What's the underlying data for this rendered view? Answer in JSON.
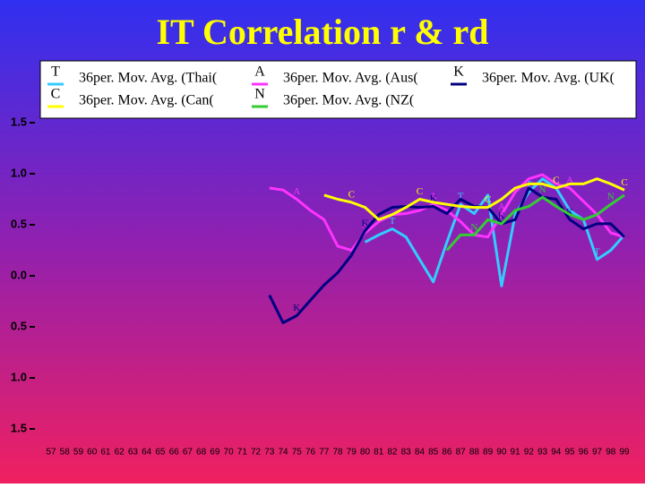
{
  "chart_data": {
    "type": "line",
    "title": "IT Correlation r & rd",
    "categories": [
      "57",
      "58",
      "59",
      "60",
      "61",
      "62",
      "63",
      "64",
      "65",
      "66",
      "67",
      "68",
      "69",
      "70",
      "71",
      "72",
      "73",
      "74",
      "75",
      "76",
      "77",
      "78",
      "79",
      "80",
      "81",
      "82",
      "83",
      "84",
      "85",
      "86",
      "87",
      "88",
      "89",
      "90",
      "91",
      "92",
      "93",
      "94",
      "95",
      "96",
      "97",
      "98",
      "99"
    ],
    "ylim": [
      -1.5,
      1.5
    ],
    "yticks": [
      {
        "value": -1.5,
        "label": "1.5"
      },
      {
        "value": -1,
        "label": "1.0"
      },
      {
        "value": -0.5,
        "label": "0.5"
      },
      {
        "value": 0,
        "label": "0.0"
      },
      {
        "value": 0.5,
        "label": "0.5"
      },
      {
        "value": 1,
        "label": "1.0"
      },
      {
        "value": 1.5,
        "label": "1.5"
      }
    ],
    "series": [
      {
        "name": "36per. Mov. Avg. (Thai(",
        "marker": "T",
        "color": "#33ccff",
        "values": [
          null,
          null,
          null,
          null,
          null,
          null,
          null,
          null,
          null,
          null,
          null,
          null,
          null,
          null,
          null,
          null,
          null,
          null,
          null,
          null,
          null,
          null,
          null,
          0.33,
          0.4,
          0.46,
          0.38,
          0.16,
          -0.06,
          0.33,
          0.7,
          0.61,
          0.79,
          -0.1,
          0.6,
          0.82,
          0.95,
          0.86,
          0.64,
          0.55,
          0.16,
          0.25,
          0.4
        ]
      },
      {
        "name": "36per. Mov. Avg. (Aus(",
        "marker": "A",
        "color": "#ff33ff",
        "values": [
          null,
          null,
          null,
          null,
          null,
          null,
          null,
          null,
          null,
          null,
          null,
          null,
          null,
          null,
          null,
          null,
          0.86,
          0.84,
          0.75,
          0.64,
          0.55,
          0.29,
          0.25,
          0.42,
          0.53,
          0.6,
          0.61,
          0.64,
          0.7,
          0.64,
          0.53,
          0.4,
          0.38,
          0.6,
          0.82,
          0.95,
          0.99,
          0.9,
          0.86,
          0.73,
          0.6,
          0.42,
          0.38
        ]
      },
      {
        "name": "36per. Mov. Avg. (UK(",
        "marker": "K",
        "color": "#000080",
        "values": [
          null,
          null,
          null,
          null,
          null,
          null,
          null,
          null,
          null,
          null,
          null,
          null,
          null,
          null,
          null,
          null,
          -0.19,
          -0.46,
          -0.39,
          -0.24,
          -0.09,
          0.03,
          0.2,
          0.44,
          0.6,
          0.67,
          0.68,
          0.67,
          0.68,
          0.61,
          0.75,
          0.68,
          0.67,
          0.51,
          0.55,
          0.86,
          0.77,
          0.75,
          0.55,
          0.46,
          0.51,
          0.51,
          0.38
        ]
      },
      {
        "name": "36per. Mov. Avg. (Can(",
        "marker": "C",
        "color": "#ffff00",
        "values": [
          null,
          null,
          null,
          null,
          null,
          null,
          null,
          null,
          null,
          null,
          null,
          null,
          null,
          null,
          null,
          null,
          null,
          null,
          null,
          null,
          0.79,
          0.75,
          0.72,
          0.67,
          0.55,
          0.6,
          0.67,
          0.75,
          0.72,
          0.7,
          0.68,
          0.67,
          0.67,
          0.75,
          0.86,
          0.9,
          0.9,
          0.86,
          0.9,
          0.9,
          0.95,
          0.9,
          0.84
        ]
      },
      {
        "name": "36per. Mov. Avg. (NZ(",
        "marker": "N",
        "color": "#33cc33",
        "values": [
          null,
          null,
          null,
          null,
          null,
          null,
          null,
          null,
          null,
          null,
          null,
          null,
          null,
          null,
          null,
          null,
          null,
          null,
          null,
          null,
          null,
          null,
          null,
          null,
          null,
          null,
          null,
          null,
          null,
          0.25,
          0.4,
          0.4,
          0.55,
          0.51,
          0.64,
          0.68,
          0.77,
          0.68,
          0.6,
          0.55,
          0.6,
          0.7,
          0.79
        ]
      }
    ]
  }
}
